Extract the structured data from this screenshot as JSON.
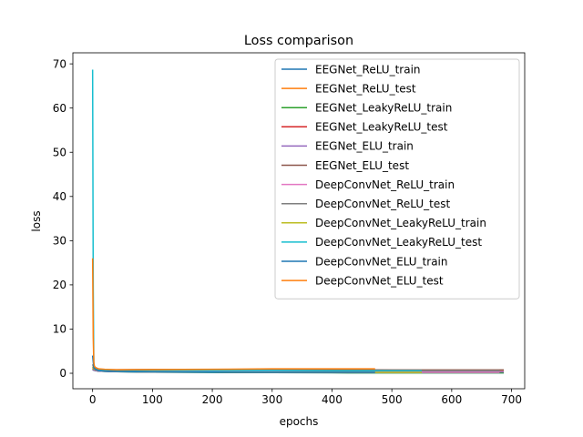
{
  "chart_data": {
    "type": "line",
    "title": "Loss comparison",
    "xlabel": "epochs",
    "ylabel": "loss",
    "xlim": [
      -33,
      722
    ],
    "ylim": [
      -3.5,
      72.5
    ],
    "x_ticks": [
      0,
      100,
      200,
      300,
      400,
      500,
      600,
      700
    ],
    "y_ticks": [
      0,
      10,
      20,
      30,
      40,
      50,
      60,
      70
    ],
    "grid": false,
    "legend_position": "top-right",
    "series": [
      {
        "name": "EEGNet_ReLU_train",
        "color": "#1f77b4",
        "x": [
          0,
          2,
          5,
          10,
          20,
          40,
          100,
          200,
          300,
          400,
          500,
          600,
          687
        ],
        "y": [
          0.9,
          0.7,
          0.6,
          0.5,
          0.45,
          0.35,
          0.25,
          0.2,
          0.15,
          0.12,
          0.1,
          0.1,
          0.1
        ]
      },
      {
        "name": "EEGNet_ReLU_test",
        "color": "#ff7f0e",
        "x": [
          0,
          2,
          5,
          10,
          20,
          40,
          100,
          200,
          300,
          400,
          500,
          600,
          687
        ],
        "y": [
          1.2,
          0.9,
          0.8,
          0.8,
          0.75,
          0.7,
          0.75,
          0.7,
          0.75,
          0.7,
          0.7,
          0.7,
          0.7
        ]
      },
      {
        "name": "EEGNet_LeakyReLU_train",
        "color": "#2ca02c",
        "x": [
          0,
          2,
          5,
          10,
          20,
          40,
          100,
          200,
          300,
          400,
          500,
          600,
          687
        ],
        "y": [
          0.9,
          0.7,
          0.6,
          0.5,
          0.45,
          0.35,
          0.25,
          0.2,
          0.15,
          0.12,
          0.1,
          0.1,
          0.1
        ]
      },
      {
        "name": "EEGNet_LeakyReLU_test",
        "color": "#d62728",
        "x": [
          0,
          2,
          5,
          10,
          20,
          40,
          100,
          200,
          300,
          400,
          500,
          600,
          687
        ],
        "y": [
          1.0,
          0.9,
          0.8,
          0.8,
          0.75,
          0.7,
          0.75,
          0.7,
          0.75,
          0.7,
          0.7,
          0.7,
          0.7
        ]
      },
      {
        "name": "EEGNet_ELU_train",
        "color": "#9467bd",
        "x": [
          0,
          2,
          5,
          10,
          20,
          40,
          100,
          200,
          300,
          400,
          500,
          600,
          687
        ],
        "y": [
          0.9,
          0.7,
          0.6,
          0.5,
          0.45,
          0.35,
          0.3,
          0.3,
          0.3,
          0.3,
          0.3,
          0.3,
          0.3
        ]
      },
      {
        "name": "EEGNet_ELU_test",
        "color": "#8c564b",
        "x": [
          0,
          2,
          5,
          10,
          20,
          40,
          100,
          200,
          300,
          400,
          500,
          600,
          687
        ],
        "y": [
          1.0,
          0.9,
          0.8,
          0.8,
          0.8,
          0.8,
          0.85,
          0.8,
          0.85,
          0.8,
          0.75,
          0.75,
          0.75
        ]
      },
      {
        "name": "DeepConvNet_ReLU_train",
        "color": "#e377c2",
        "x": [
          0,
          2,
          5,
          10,
          20,
          40,
          100,
          200,
          300,
          400,
          500,
          600,
          680
        ],
        "y": [
          1.5,
          1.0,
          0.8,
          0.6,
          0.5,
          0.4,
          0.3,
          0.25,
          0.2,
          0.2,
          0.2,
          0.2,
          0.2
        ]
      },
      {
        "name": "DeepConvNet_ReLU_test",
        "color": "#7f7f7f",
        "x": [
          0,
          2,
          5,
          10,
          20,
          40,
          100,
          200,
          300,
          400,
          500,
          600,
          680
        ],
        "y": [
          2.0,
          1.2,
          1.0,
          0.8,
          0.75,
          0.7,
          0.7,
          0.65,
          0.65,
          0.6,
          0.6,
          0.6,
          0.6
        ]
      },
      {
        "name": "DeepConvNet_LeakyReLU_train",
        "color": "#bcbd22",
        "x": [
          0,
          2,
          5,
          10,
          20,
          40,
          100,
          200,
          300,
          400,
          500,
          550
        ],
        "y": [
          1.5,
          1.0,
          0.8,
          0.6,
          0.5,
          0.4,
          0.3,
          0.25,
          0.2,
          0.2,
          0.2,
          0.2
        ]
      },
      {
        "name": "DeepConvNet_LeakyReLU_test",
        "color": "#17becf",
        "x": [
          0,
          1,
          2,
          3,
          5,
          10,
          20,
          40,
          100,
          200,
          300,
          400,
          500,
          550
        ],
        "y": [
          68.7,
          20.0,
          2.5,
          1.2,
          0.9,
          0.8,
          0.75,
          0.7,
          0.7,
          0.65,
          0.65,
          0.6,
          0.6,
          0.6
        ]
      },
      {
        "name": "DeepConvNet_ELU_train",
        "color": "#1f77b4",
        "x": [
          0,
          2,
          5,
          10,
          20,
          40,
          100,
          200,
          300,
          400,
          472
        ],
        "y": [
          4.0,
          1.2,
          0.9,
          0.6,
          0.5,
          0.4,
          0.3,
          0.25,
          0.2,
          0.2,
          0.2
        ]
      },
      {
        "name": "DeepConvNet_ELU_test",
        "color": "#ff7f0e",
        "x": [
          0,
          1,
          2,
          3,
          5,
          10,
          20,
          40,
          100,
          200,
          300,
          400,
          472
        ],
        "y": [
          26.0,
          8.0,
          2.5,
          1.6,
          1.3,
          1.0,
          0.9,
          0.8,
          0.85,
          0.9,
          1.0,
          1.0,
          1.0
        ]
      }
    ]
  }
}
